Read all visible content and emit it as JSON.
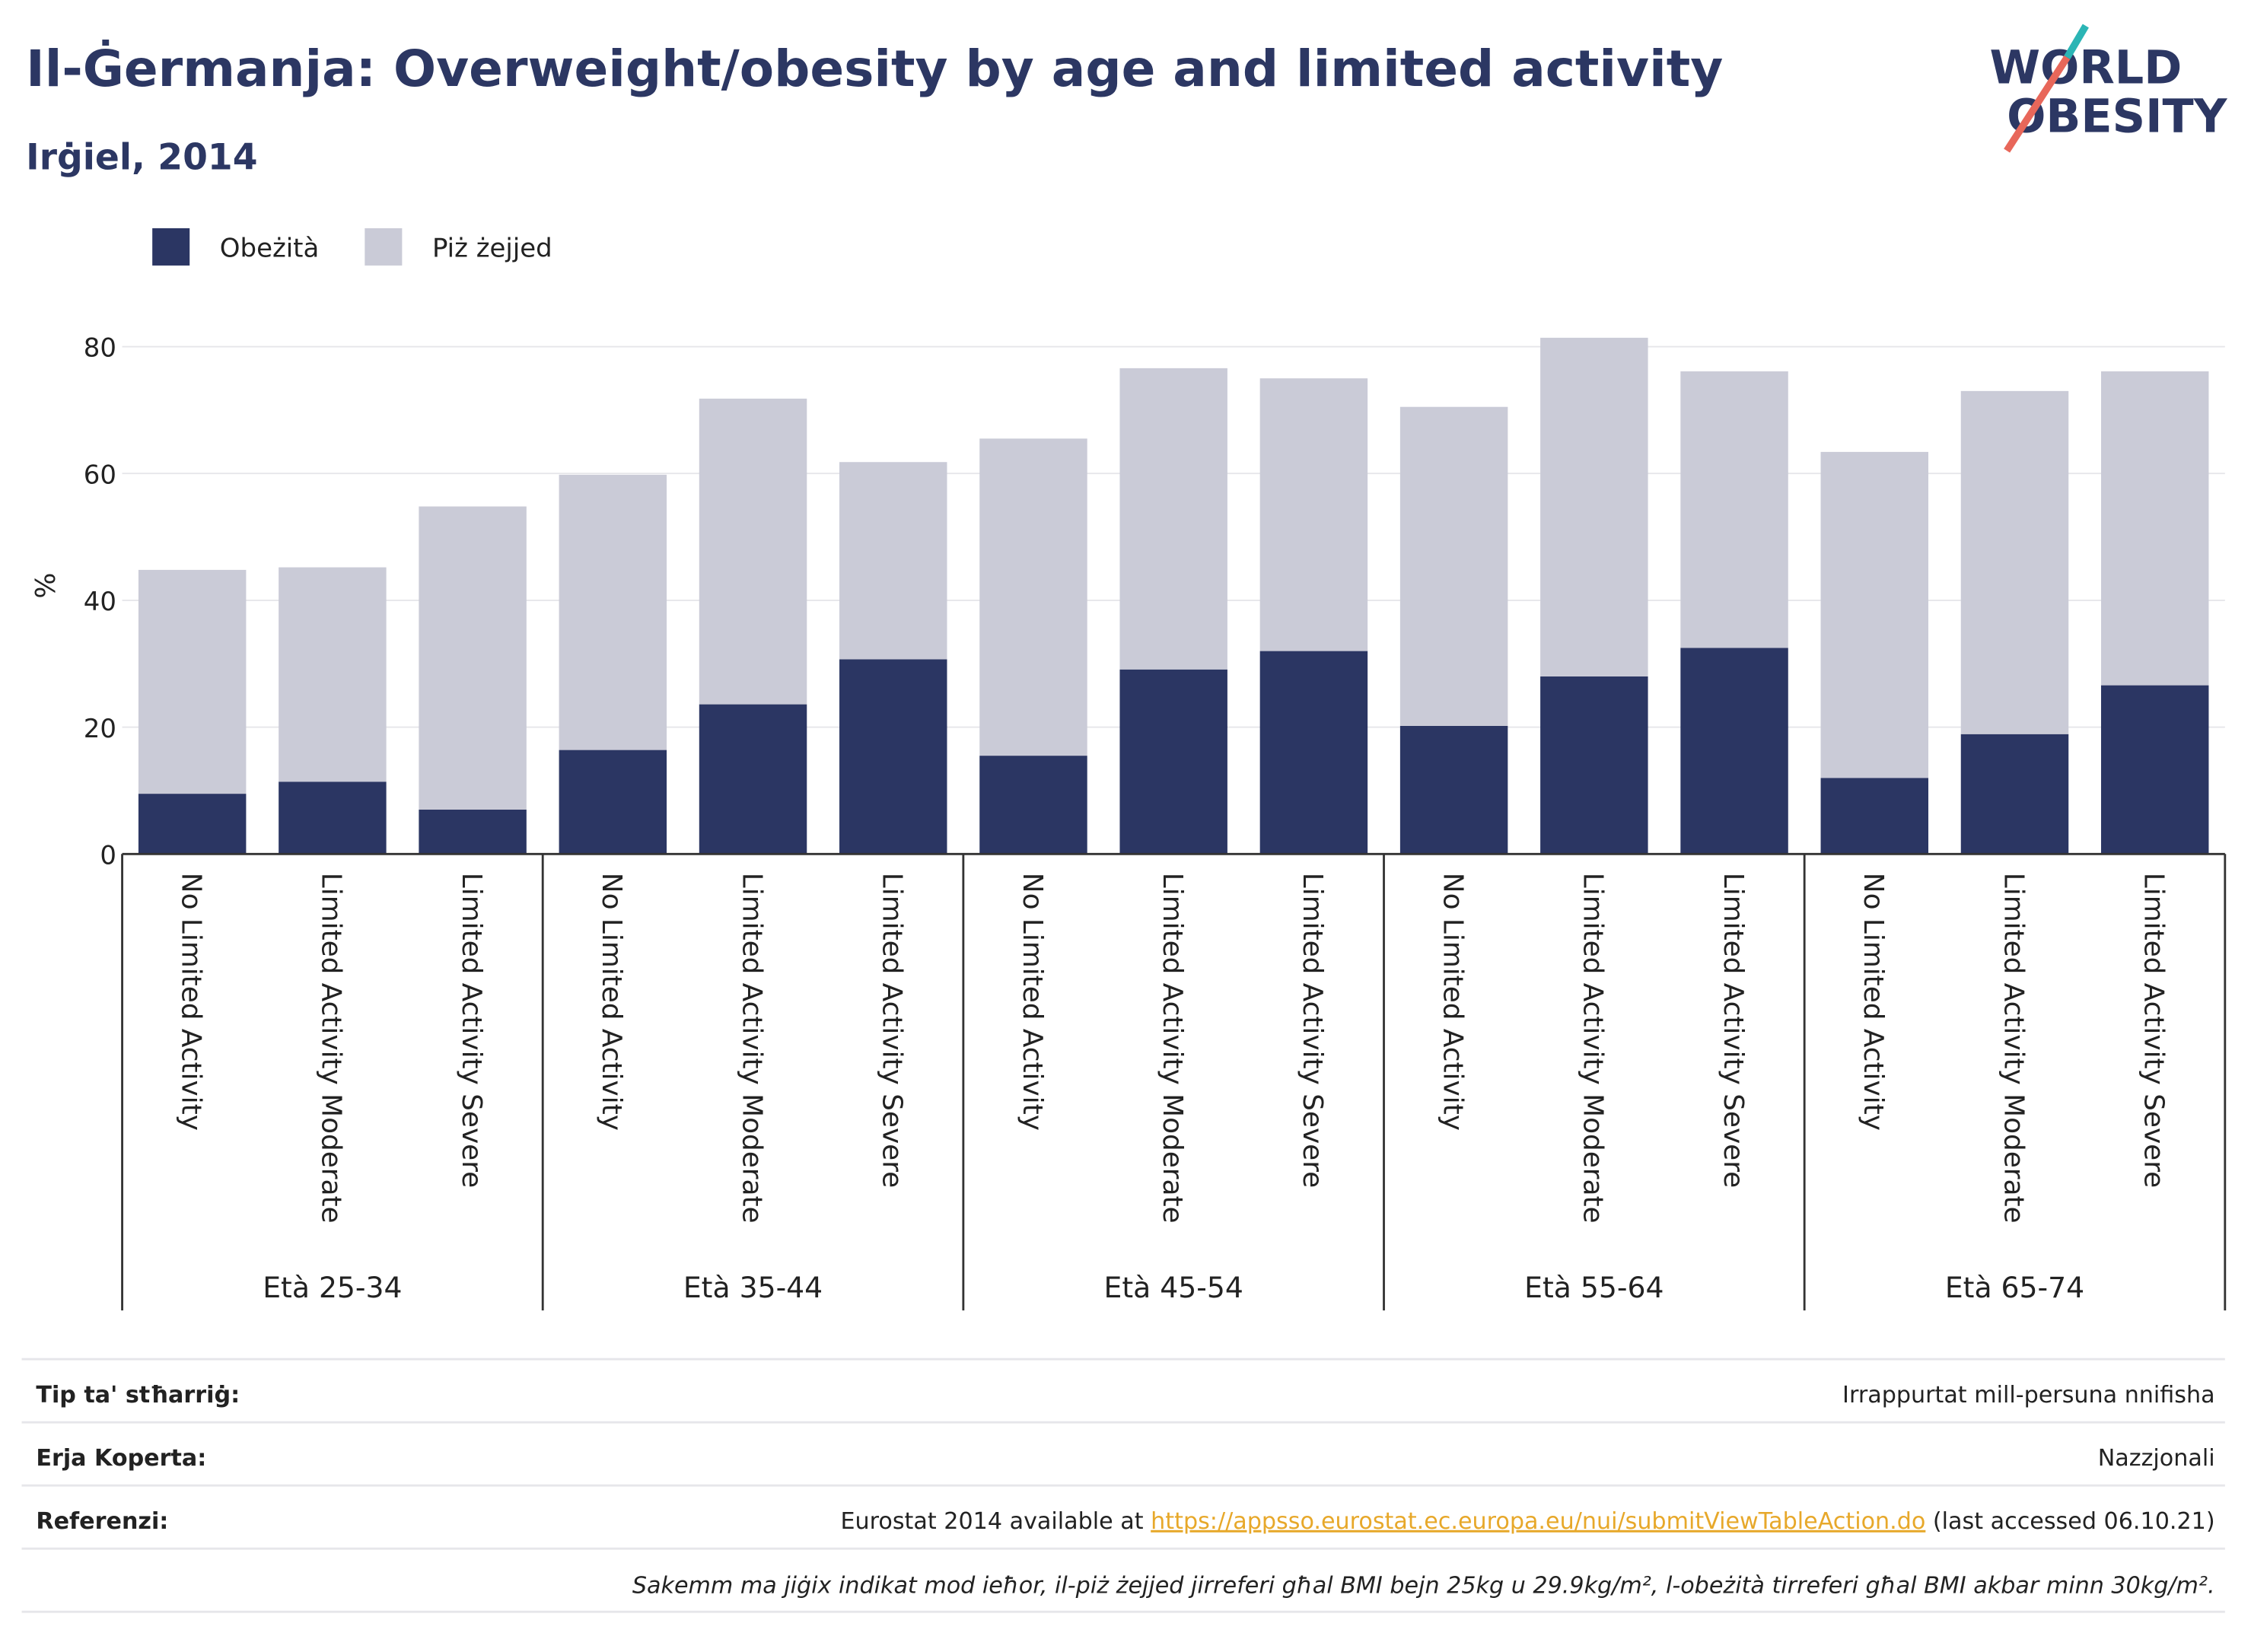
{
  "chart_data": {
    "type": "stacked_bar",
    "title": "Il-Ġermanja: Overweight/obesity by age and limited activity",
    "subtitle": "Irġiel, 2014",
    "y_label": "%",
    "logo": [
      "WORLD",
      "OBESITY"
    ],
    "categories": [
      "No Limited Activity",
      "Limited Activity Moderate",
      "Limited Activity Severe",
      "No Limited Activity",
      "Limited Activity Moderate",
      "Limited Activity Severe",
      "No Limited Activity",
      "Limited Activity Moderate",
      "Limited Activity Severe",
      "No Limited Activity",
      "Limited Activity Moderate",
      "Limited Activity Severe",
      "No Limited Activity",
      "Limited Activity Moderate",
      "Limited Activity Severe"
    ],
    "groups": [
      "Età 25-34",
      "Età 35-44",
      "Età 45-54",
      "Età 55-64",
      "Età 65-74"
    ],
    "series": [
      {
        "name": "Obeżità",
        "color": "#2b3663",
        "values": [
          9.5,
          11.4,
          7.0,
          16.4,
          23.6,
          30.7,
          15.5,
          29.1,
          32.0,
          20.2,
          28.0,
          32.5,
          12.0,
          18.9,
          26.6
        ]
      },
      {
        "name": "Piż żejjed",
        "color": "#cacbd7",
        "values": [
          35.3,
          33.8,
          47.8,
          43.4,
          48.2,
          31.1,
          50.0,
          47.5,
          43.0,
          50.3,
          53.4,
          43.6,
          51.4,
          54.1,
          49.5
        ]
      }
    ],
    "ylim": [
      0,
      86
    ],
    "yticks": [
      0,
      20,
      40,
      60,
      80
    ],
    "grid": true,
    "legend": "top-left"
  },
  "footer": {
    "rows": [
      {
        "label": "Tip ta' stħarriġ:",
        "value": "Irrappurtat mill-persuna nnifisha"
      },
      {
        "label": "Erja Koperta:",
        "value": "Nazzjonali"
      },
      {
        "label": "Referenzi:",
        "value": "Eurostat 2014 available at ",
        "link": "https://appsso.eurostat.ec.europa.eu/nui/submitViewTableAction.do",
        "after": " (last accessed 06.10.21)"
      }
    ],
    "note": "Sakemm ma jiġix indikat mod ieħor, il-piż żejjed jirreferi għal BMI bejn 25kg u 29.9kg/m², l-obeżità tirreferi għal BMI akbar minn 30kg/m²."
  }
}
